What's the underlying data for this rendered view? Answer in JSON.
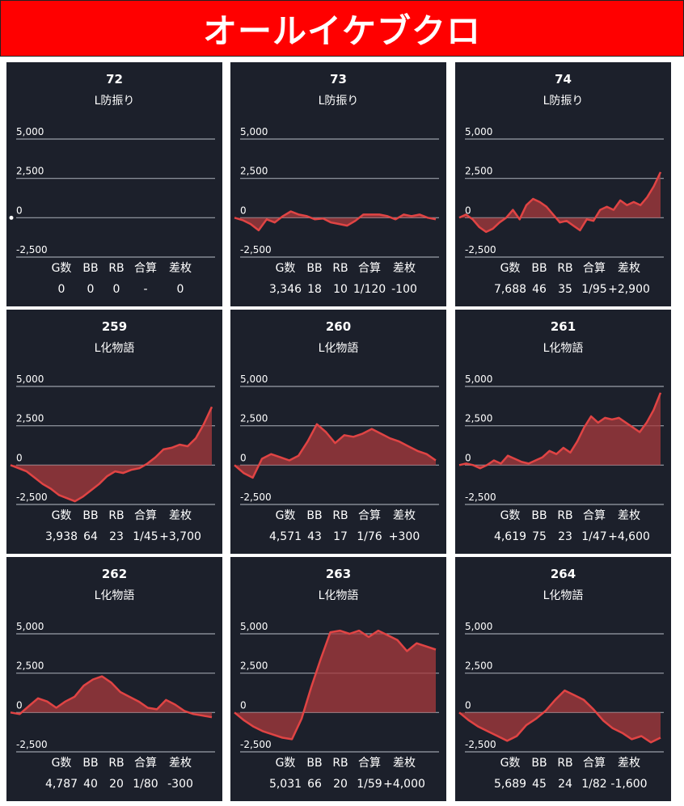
{
  "title": "オールイケブクロ",
  "colors": {
    "header_bg": "#ff0000",
    "card_bg": "#1c202b",
    "line": "#e04444",
    "fill": "#a83a3e",
    "grid": "#9aa0aa"
  },
  "stat_labels": [
    "G数",
    "BB",
    "RB",
    "合算",
    "差枚"
  ],
  "chart_data": [
    {
      "type": "area",
      "title": "72",
      "subtitle": "L防振り",
      "ylim": [
        -2500,
        5000
      ],
      "yticks": [
        "5,000",
        "2,500",
        "0",
        "-2,500"
      ],
      "values": [
        0
      ],
      "stats": [
        "0",
        "0",
        "0",
        "-",
        "0"
      ]
    },
    {
      "type": "area",
      "title": "73",
      "subtitle": "L防振り",
      "ylim": [
        -2500,
        5000
      ],
      "yticks": [
        "5,000",
        "2,500",
        "0",
        "-2,500"
      ],
      "values": [
        0,
        -150,
        -400,
        -800,
        -100,
        -300,
        100,
        400,
        200,
        100,
        -100,
        -50,
        -300,
        -400,
        -500,
        -200,
        200,
        200,
        200,
        100,
        -100,
        200,
        100,
        200,
        0,
        -100
      ],
      "stats": [
        "3,346",
        "18",
        "10",
        "1/120",
        "-100"
      ]
    },
    {
      "type": "area",
      "title": "74",
      "subtitle": "L防振り",
      "ylim": [
        -2500,
        5000
      ],
      "yticks": [
        "5,000",
        "2,500",
        "0",
        "-2,500"
      ],
      "values": [
        0,
        200,
        -100,
        -600,
        -900,
        -700,
        -300,
        0,
        500,
        -100,
        800,
        1200,
        1000,
        700,
        200,
        -300,
        -200,
        -500,
        -800,
        -100,
        -200,
        500,
        700,
        500,
        1100,
        800,
        1000,
        800,
        1300,
        2000,
        2900
      ],
      "stats": [
        "7,688",
        "46",
        "35",
        "1/95",
        "+2,900"
      ]
    },
    {
      "type": "area",
      "title": "259",
      "subtitle": "L化物語",
      "ylim": [
        -2500,
        5000
      ],
      "yticks": [
        "5,000",
        "2,500",
        "0",
        "-2,500"
      ],
      "values": [
        0,
        -200,
        -400,
        -800,
        -1200,
        -1500,
        -1900,
        -2100,
        -2300,
        -2000,
        -1600,
        -1200,
        -700,
        -400,
        -500,
        -300,
        -200,
        100,
        500,
        1000,
        1100,
        1300,
        1200,
        1700,
        2600,
        3700
      ],
      "stats": [
        "3,938",
        "64",
        "23",
        "1/45",
        "+3,700"
      ]
    },
    {
      "type": "area",
      "title": "260",
      "subtitle": "L化物語",
      "ylim": [
        -2500,
        5000
      ],
      "yticks": [
        "5,000",
        "2,500",
        "0",
        "-2,500"
      ],
      "values": [
        0,
        -500,
        -800,
        400,
        700,
        500,
        300,
        600,
        1500,
        2600,
        2100,
        1400,
        1900,
        1800,
        2000,
        2300,
        2000,
        1700,
        1500,
        1200,
        900,
        700,
        300
      ],
      "stats": [
        "4,571",
        "43",
        "17",
        "1/76",
        "+300"
      ]
    },
    {
      "type": "area",
      "title": "261",
      "subtitle": "L化物語",
      "ylim": [
        -2500,
        5000
      ],
      "yticks": [
        "5,000",
        "2,500",
        "0",
        "-2,500"
      ],
      "values": [
        0,
        100,
        0,
        -200,
        0,
        300,
        100,
        600,
        400,
        200,
        100,
        300,
        500,
        900,
        700,
        1100,
        800,
        1500,
        2400,
        3100,
        2700,
        3000,
        2900,
        3000,
        2700,
        2400,
        2100,
        2700,
        3500,
        4600
      ],
      "stats": [
        "4,619",
        "75",
        "23",
        "1/47",
        "+4,600"
      ]
    },
    {
      "type": "area",
      "title": "262",
      "subtitle": "L化物語",
      "ylim": [
        -2500,
        5000
      ],
      "yticks": [
        "5,000",
        "2,500",
        "0",
        "-2,500"
      ],
      "values": [
        0,
        -100,
        400,
        900,
        700,
        300,
        700,
        1000,
        1700,
        2100,
        2300,
        1900,
        1300,
        1000,
        700,
        300,
        200,
        800,
        500,
        100,
        -100,
        -200,
        -300
      ],
      "stats": [
        "4,787",
        "40",
        "20",
        "1/80",
        "-300"
      ]
    },
    {
      "type": "area",
      "title": "263",
      "subtitle": "L化物語",
      "ylim": [
        -2500,
        5000
      ],
      "yticks": [
        "5,000",
        "2,500",
        "0",
        "-2,500"
      ],
      "values": [
        0,
        -500,
        -900,
        -1200,
        -1400,
        -1600,
        -1700,
        -400,
        1600,
        3400,
        5100,
        5300,
        5000,
        5300,
        4800,
        5200,
        4900,
        4600,
        3900,
        4400,
        4200,
        4000
      ],
      "stats": [
        "5,031",
        "66",
        "20",
        "1/59",
        "+4,000"
      ]
    },
    {
      "type": "area",
      "title": "264",
      "subtitle": "L化物語",
      "ylim": [
        -2500,
        5000
      ],
      "yticks": [
        "5,000",
        "2,500",
        "0",
        "-2,500"
      ],
      "values": [
        0,
        -500,
        -900,
        -1200,
        -1500,
        -1800,
        -1500,
        -800,
        -400,
        100,
        800,
        1400,
        1100,
        800,
        200,
        -500,
        -1000,
        -1300,
        -1700,
        -1500,
        -1900,
        -1600
      ],
      "stats": [
        "5,689",
        "45",
        "24",
        "1/82",
        "-1,600"
      ]
    }
  ]
}
